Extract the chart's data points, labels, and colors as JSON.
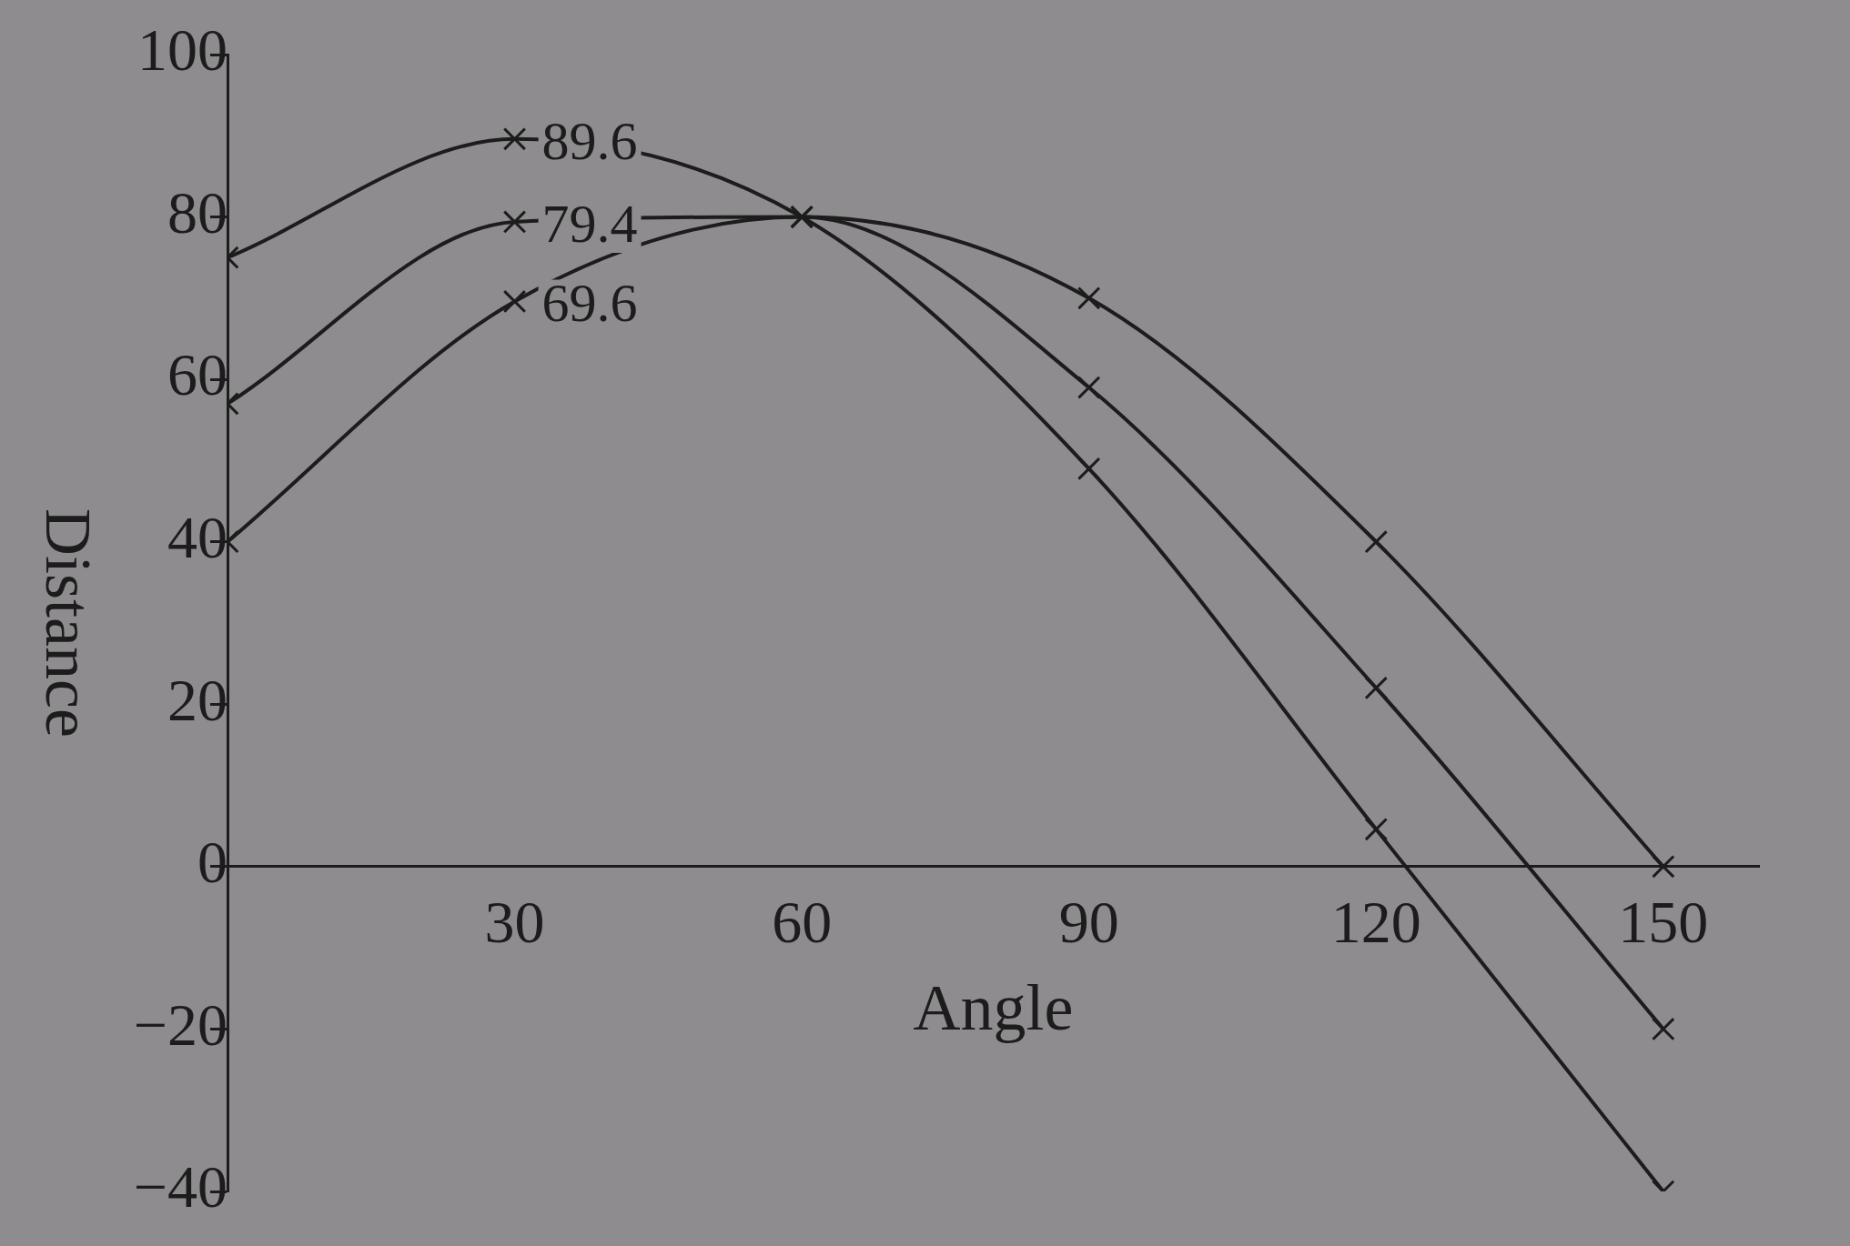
{
  "chart_data": {
    "type": "line",
    "xlabel": "Angle",
    "ylabel": "Distance",
    "x": [
      0,
      30,
      60,
      90,
      120,
      150
    ],
    "series": [
      {
        "color": "#1c1c1c",
        "values": [
          75,
          89.6,
          80,
          49,
          4.6,
          -40
        ],
        "value_labels": [
          null,
          "89.6",
          null,
          null,
          null,
          null
        ]
      },
      {
        "color": "#1c1c1c",
        "values": [
          57,
          79.4,
          80,
          59,
          22,
          -20
        ],
        "value_labels": [
          null,
          "79.4",
          null,
          null,
          null,
          null
        ]
      },
      {
        "color": "#1c1c1c",
        "values": [
          40,
          69.6,
          80,
          70,
          40,
          0
        ],
        "value_labels": [
          null,
          "69.6",
          null,
          null,
          null,
          null
        ]
      }
    ],
    "xlim": [
      0,
      160
    ],
    "xticks": [
      30,
      60,
      90,
      120,
      150
    ],
    "ylim": [
      -40,
      100
    ],
    "yticks": [
      -40,
      -20,
      0,
      20,
      40,
      60,
      80,
      100
    ],
    "grid": false,
    "legend": false,
    "marker": "cross",
    "line_style": "solid"
  }
}
